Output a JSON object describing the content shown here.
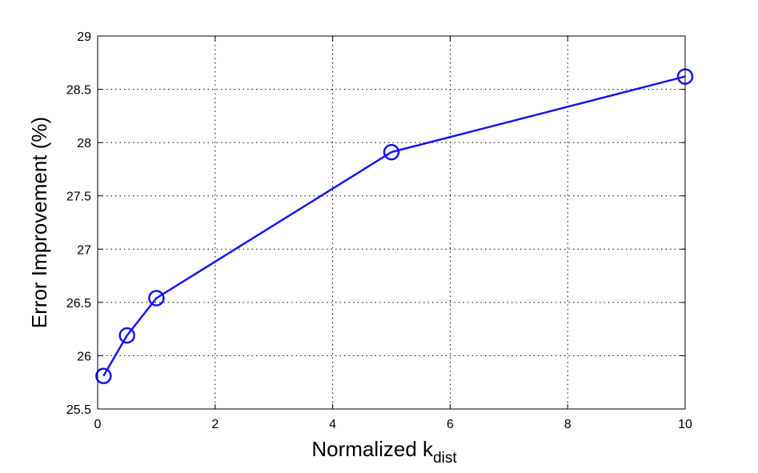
{
  "chart_data": {
    "type": "line",
    "title": "",
    "xlabel": "Normalized k",
    "xlabel_subscript": "dist",
    "ylabel": "Error Improvement (%)",
    "xlim": [
      0,
      10
    ],
    "ylim": [
      25.5,
      29
    ],
    "xticks": [
      "0",
      "2",
      "4",
      "6",
      "8",
      "10"
    ],
    "yticks": [
      "25.5",
      "26",
      "26.5",
      "27",
      "27.5",
      "28",
      "28.5",
      "29"
    ],
    "grid": true,
    "marker": "circle",
    "color": "#1515ee",
    "series": [
      {
        "x": [
          0.1,
          0.5,
          1,
          5,
          10
        ],
        "y": [
          25.81,
          26.19,
          26.54,
          27.91,
          28.62
        ]
      }
    ]
  }
}
